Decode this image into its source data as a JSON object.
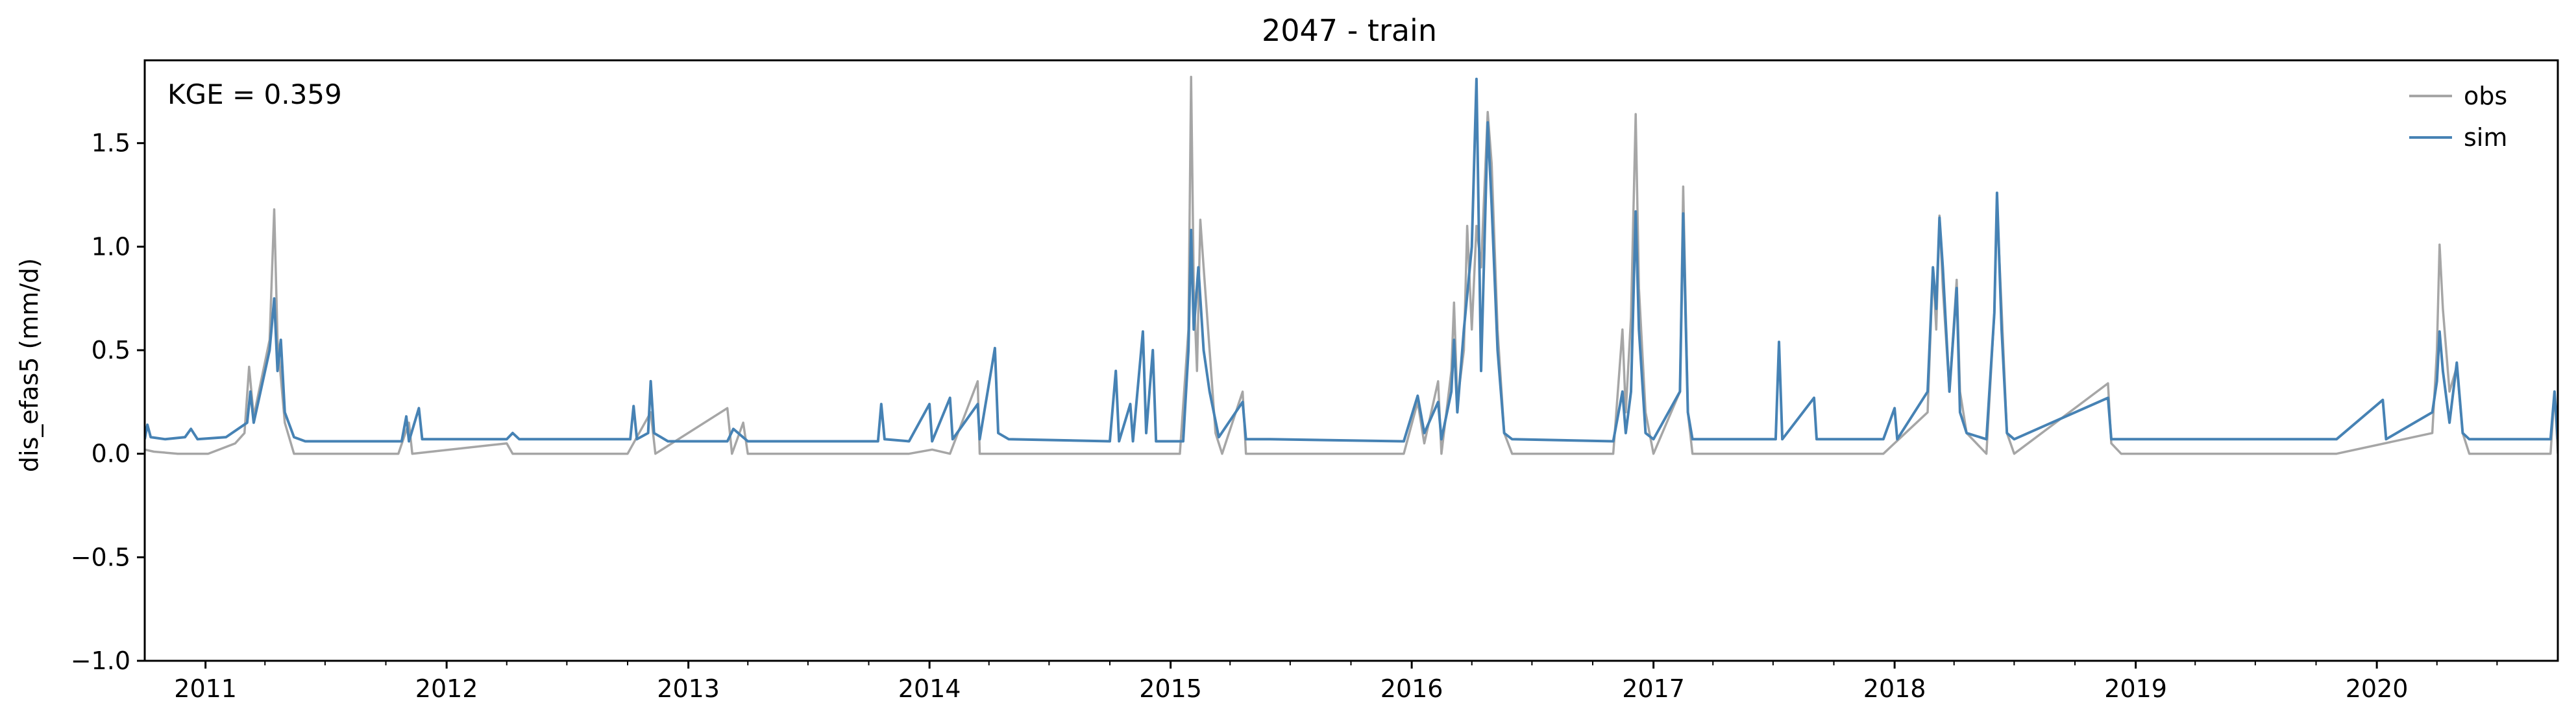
{
  "chart_data": {
    "type": "line",
    "title": "2047 - train",
    "ylabel": "dis_efas5 (mm/d)",
    "xlabel": "",
    "annotation": "KGE = 0.359",
    "xlim": [
      "2010-10-01",
      "2020-10-01"
    ],
    "ylim": [
      -1.0,
      1.9
    ],
    "yticks": [
      -1.0,
      -0.5,
      0.0,
      0.5,
      1.0,
      1.5
    ],
    "ytick_labels": [
      "−1.0",
      "−0.5",
      "0.0",
      "0.5",
      "1.0",
      "1.5"
    ],
    "xticks": [
      "2011-01-01",
      "2012-01-01",
      "2013-01-01",
      "2014-01-01",
      "2015-01-01",
      "2016-01-01",
      "2017-01-01",
      "2018-01-01",
      "2019-01-01",
      "2020-01-01"
    ],
    "xtick_labels": [
      "2011",
      "2012",
      "2013",
      "2014",
      "2015",
      "2016",
      "2017",
      "2018",
      "2019",
      "2020"
    ],
    "grid": false,
    "legend": {
      "position": "top-right",
      "entries": [
        "obs",
        "sim"
      ]
    },
    "colors": {
      "obs": "#a6a6a6",
      "sim": "#4682b4"
    },
    "series": [
      {
        "name": "obs",
        "points": [
          [
            "2010-10-01",
            0.02
          ],
          [
            "2010-10-15",
            0.01
          ],
          [
            "2010-11-20",
            0.0
          ],
          [
            "2011-01-05",
            0.0
          ],
          [
            "2011-02-15",
            0.05
          ],
          [
            "2011-03-01",
            0.1
          ],
          [
            "2011-03-08",
            0.42
          ],
          [
            "2011-03-15",
            0.18
          ],
          [
            "2011-04-08",
            0.55
          ],
          [
            "2011-04-15",
            1.18
          ],
          [
            "2011-04-20",
            0.55
          ],
          [
            "2011-05-01",
            0.15
          ],
          [
            "2011-05-15",
            0.0
          ],
          [
            "2011-10-20",
            0.0
          ],
          [
            "2011-11-05",
            0.15
          ],
          [
            "2011-11-10",
            0.0
          ],
          [
            "2012-04-01",
            0.05
          ],
          [
            "2012-04-10",
            0.0
          ],
          [
            "2012-10-01",
            0.0
          ],
          [
            "2012-11-05",
            0.2
          ],
          [
            "2012-11-12",
            0.0
          ],
          [
            "2013-03-01",
            0.22
          ],
          [
            "2013-03-08",
            0.0
          ],
          [
            "2013-03-25",
            0.15
          ],
          [
            "2013-04-01",
            0.0
          ],
          [
            "2013-10-01",
            0.0
          ],
          [
            "2013-12-01",
            0.0
          ],
          [
            "2014-01-05",
            0.02
          ],
          [
            "2014-02-01",
            0.0
          ],
          [
            "2014-03-15",
            0.35
          ],
          [
            "2014-03-18",
            0.0
          ],
          [
            "2015-01-15",
            0.0
          ],
          [
            "2015-01-28",
            0.6
          ],
          [
            "2015-02-01",
            1.82
          ],
          [
            "2015-02-05",
            0.8
          ],
          [
            "2015-02-10",
            0.4
          ],
          [
            "2015-02-15",
            1.13
          ],
          [
            "2015-02-20",
            0.9
          ],
          [
            "2015-03-01",
            0.5
          ],
          [
            "2015-03-10",
            0.1
          ],
          [
            "2015-03-20",
            0.0
          ],
          [
            "2015-04-20",
            0.3
          ],
          [
            "2015-04-25",
            0.0
          ],
          [
            "2015-12-20",
            0.0
          ],
          [
            "2016-01-10",
            0.25
          ],
          [
            "2016-01-20",
            0.05
          ],
          [
            "2016-02-10",
            0.35
          ],
          [
            "2016-02-15",
            0.0
          ],
          [
            "2016-03-01",
            0.4
          ],
          [
            "2016-03-05",
            0.73
          ],
          [
            "2016-03-10",
            0.25
          ],
          [
            "2016-03-20",
            0.5
          ],
          [
            "2016-03-25",
            1.1
          ],
          [
            "2016-04-01",
            0.6
          ],
          [
            "2016-04-08",
            1.1
          ],
          [
            "2016-04-15",
            0.9
          ],
          [
            "2016-04-25",
            1.65
          ],
          [
            "2016-05-01",
            1.4
          ],
          [
            "2016-05-10",
            0.6
          ],
          [
            "2016-05-20",
            0.1
          ],
          [
            "2016-06-01",
            0.0
          ],
          [
            "2016-11-01",
            0.0
          ],
          [
            "2016-11-15",
            0.6
          ],
          [
            "2016-11-20",
            0.2
          ],
          [
            "2016-11-28",
            0.66
          ],
          [
            "2016-12-05",
            1.64
          ],
          [
            "2016-12-10",
            0.8
          ],
          [
            "2016-12-20",
            0.2
          ],
          [
            "2017-01-01",
            0.0
          ],
          [
            "2017-02-10",
            0.3
          ],
          [
            "2017-02-15",
            1.29
          ],
          [
            "2017-02-22",
            0.2
          ],
          [
            "2017-03-01",
            0.0
          ],
          [
            "2017-07-10",
            0.0
          ],
          [
            "2017-09-01",
            0.0
          ],
          [
            "2017-12-15",
            0.0
          ],
          [
            "2018-02-20",
            0.2
          ],
          [
            "2018-02-28",
            0.9
          ],
          [
            "2018-03-05",
            0.6
          ],
          [
            "2018-03-10",
            1.15
          ],
          [
            "2018-03-15",
            0.8
          ],
          [
            "2018-03-25",
            0.3
          ],
          [
            "2018-04-05",
            0.84
          ],
          [
            "2018-04-10",
            0.3
          ],
          [
            "2018-04-20",
            0.1
          ],
          [
            "2018-05-20",
            0.0
          ],
          [
            "2018-06-01",
            0.68
          ],
          [
            "2018-06-05",
            1.2
          ],
          [
            "2018-06-12",
            0.7
          ],
          [
            "2018-06-20",
            0.1
          ],
          [
            "2018-07-01",
            0.0
          ],
          [
            "2018-11-20",
            0.34
          ],
          [
            "2018-11-25",
            0.05
          ],
          [
            "2018-12-10",
            0.0
          ],
          [
            "2019-11-01",
            0.0
          ],
          [
            "2020-03-25",
            0.1
          ],
          [
            "2020-04-01",
            0.5
          ],
          [
            "2020-04-05",
            1.01
          ],
          [
            "2020-04-10",
            0.7
          ],
          [
            "2020-04-20",
            0.3
          ],
          [
            "2020-05-01",
            0.42
          ],
          [
            "2020-05-10",
            0.1
          ],
          [
            "2020-05-20",
            0.0
          ],
          [
            "2020-09-20",
            0.0
          ],
          [
            "2020-09-26",
            0.3
          ],
          [
            "2020-10-01",
            0.0
          ]
        ]
      },
      {
        "name": "sim",
        "points": [
          [
            "2010-10-01",
            0.07
          ],
          [
            "2010-10-05",
            0.14
          ],
          [
            "2010-10-10",
            0.08
          ],
          [
            "2010-11-01",
            0.07
          ],
          [
            "2010-12-01",
            0.08
          ],
          [
            "2010-12-10",
            0.12
          ],
          [
            "2010-12-20",
            0.07
          ],
          [
            "2011-02-01",
            0.08
          ],
          [
            "2011-03-05",
            0.15
          ],
          [
            "2011-03-10",
            0.3
          ],
          [
            "2011-03-15",
            0.15
          ],
          [
            "2011-04-08",
            0.5
          ],
          [
            "2011-04-15",
            0.75
          ],
          [
            "2011-04-20",
            0.4
          ],
          [
            "2011-04-25",
            0.55
          ],
          [
            "2011-05-01",
            0.2
          ],
          [
            "2011-05-15",
            0.08
          ],
          [
            "2011-06-01",
            0.06
          ],
          [
            "2011-10-25",
            0.06
          ],
          [
            "2011-11-01",
            0.18
          ],
          [
            "2011-11-05",
            0.06
          ],
          [
            "2011-11-20",
            0.22
          ],
          [
            "2011-11-25",
            0.07
          ],
          [
            "2012-04-01",
            0.07
          ],
          [
            "2012-04-10",
            0.1
          ],
          [
            "2012-04-20",
            0.07
          ],
          [
            "2012-10-05",
            0.07
          ],
          [
            "2012-10-10",
            0.23
          ],
          [
            "2012-10-15",
            0.07
          ],
          [
            "2012-11-01",
            0.1
          ],
          [
            "2012-11-05",
            0.35
          ],
          [
            "2012-11-10",
            0.1
          ],
          [
            "2012-12-01",
            0.06
          ],
          [
            "2013-03-01",
            0.06
          ],
          [
            "2013-03-10",
            0.12
          ],
          [
            "2013-04-01",
            0.06
          ],
          [
            "2013-10-15",
            0.06
          ],
          [
            "2013-10-20",
            0.24
          ],
          [
            "2013-10-25",
            0.07
          ],
          [
            "2013-12-01",
            0.06
          ],
          [
            "2014-01-01",
            0.24
          ],
          [
            "2014-01-05",
            0.06
          ],
          [
            "2014-02-01",
            0.27
          ],
          [
            "2014-02-05",
            0.07
          ],
          [
            "2014-03-15",
            0.24
          ],
          [
            "2014-03-18",
            0.07
          ],
          [
            "2014-04-10",
            0.51
          ],
          [
            "2014-04-15",
            0.1
          ],
          [
            "2014-05-01",
            0.07
          ],
          [
            "2014-10-01",
            0.06
          ],
          [
            "2014-10-10",
            0.4
          ],
          [
            "2014-10-15",
            0.06
          ],
          [
            "2014-11-01",
            0.24
          ],
          [
            "2014-11-05",
            0.06
          ],
          [
            "2014-11-20",
            0.59
          ],
          [
            "2014-11-25",
            0.1
          ],
          [
            "2014-12-05",
            0.5
          ],
          [
            "2014-12-10",
            0.06
          ],
          [
            "2015-01-20",
            0.06
          ],
          [
            "2015-01-28",
            0.5
          ],
          [
            "2015-02-01",
            1.08
          ],
          [
            "2015-02-05",
            0.6
          ],
          [
            "2015-02-12",
            0.9
          ],
          [
            "2015-02-20",
            0.5
          ],
          [
            "2015-03-01",
            0.3
          ],
          [
            "2015-03-15",
            0.08
          ],
          [
            "2015-04-20",
            0.25
          ],
          [
            "2015-04-25",
            0.07
          ],
          [
            "2015-06-01",
            0.07
          ],
          [
            "2015-12-20",
            0.06
          ],
          [
            "2016-01-10",
            0.28
          ],
          [
            "2016-01-20",
            0.1
          ],
          [
            "2016-02-10",
            0.25
          ],
          [
            "2016-02-15",
            0.07
          ],
          [
            "2016-03-01",
            0.3
          ],
          [
            "2016-03-05",
            0.55
          ],
          [
            "2016-03-10",
            0.2
          ],
          [
            "2016-03-20",
            0.6
          ],
          [
            "2016-04-01",
            1.0
          ],
          [
            "2016-04-08",
            1.81
          ],
          [
            "2016-04-15",
            0.4
          ],
          [
            "2016-04-25",
            1.6
          ],
          [
            "2016-05-01",
            1.2
          ],
          [
            "2016-05-10",
            0.5
          ],
          [
            "2016-05-20",
            0.1
          ],
          [
            "2016-06-01",
            0.07
          ],
          [
            "2016-11-01",
            0.06
          ],
          [
            "2016-11-15",
            0.3
          ],
          [
            "2016-11-20",
            0.1
          ],
          [
            "2016-11-28",
            0.3
          ],
          [
            "2016-12-05",
            1.17
          ],
          [
            "2016-12-10",
            0.6
          ],
          [
            "2016-12-20",
            0.1
          ],
          [
            "2017-01-01",
            0.07
          ],
          [
            "2017-02-10",
            0.3
          ],
          [
            "2017-02-15",
            1.16
          ],
          [
            "2017-02-22",
            0.2
          ],
          [
            "2017-03-01",
            0.07
          ],
          [
            "2017-07-05",
            0.07
          ],
          [
            "2017-07-10",
            0.54
          ],
          [
            "2017-07-15",
            0.07
          ],
          [
            "2017-09-01",
            0.27
          ],
          [
            "2017-09-05",
            0.07
          ],
          [
            "2017-12-15",
            0.07
          ],
          [
            "2018-01-01",
            0.22
          ],
          [
            "2018-01-05",
            0.07
          ],
          [
            "2018-02-20",
            0.3
          ],
          [
            "2018-02-28",
            0.9
          ],
          [
            "2018-03-05",
            0.7
          ],
          [
            "2018-03-10",
            1.14
          ],
          [
            "2018-03-15",
            0.9
          ],
          [
            "2018-03-25",
            0.3
          ],
          [
            "2018-04-05",
            0.8
          ],
          [
            "2018-04-10",
            0.2
          ],
          [
            "2018-04-20",
            0.1
          ],
          [
            "2018-05-20",
            0.07
          ],
          [
            "2018-06-01",
            0.68
          ],
          [
            "2018-06-05",
            1.26
          ],
          [
            "2018-06-12",
            0.6
          ],
          [
            "2018-06-20",
            0.1
          ],
          [
            "2018-07-01",
            0.07
          ],
          [
            "2018-11-20",
            0.27
          ],
          [
            "2018-11-25",
            0.07
          ],
          [
            "2018-12-10",
            0.07
          ],
          [
            "2019-11-01",
            0.07
          ],
          [
            "2020-01-10",
            0.26
          ],
          [
            "2020-01-15",
            0.07
          ],
          [
            "2020-03-25",
            0.2
          ],
          [
            "2020-04-01",
            0.35
          ],
          [
            "2020-04-05",
            0.59
          ],
          [
            "2020-04-10",
            0.4
          ],
          [
            "2020-04-20",
            0.15
          ],
          [
            "2020-05-01",
            0.44
          ],
          [
            "2020-05-10",
            0.1
          ],
          [
            "2020-05-20",
            0.07
          ],
          [
            "2020-09-20",
            0.07
          ],
          [
            "2020-09-26",
            0.3
          ],
          [
            "2020-10-01",
            0.07
          ]
        ]
      }
    ]
  }
}
